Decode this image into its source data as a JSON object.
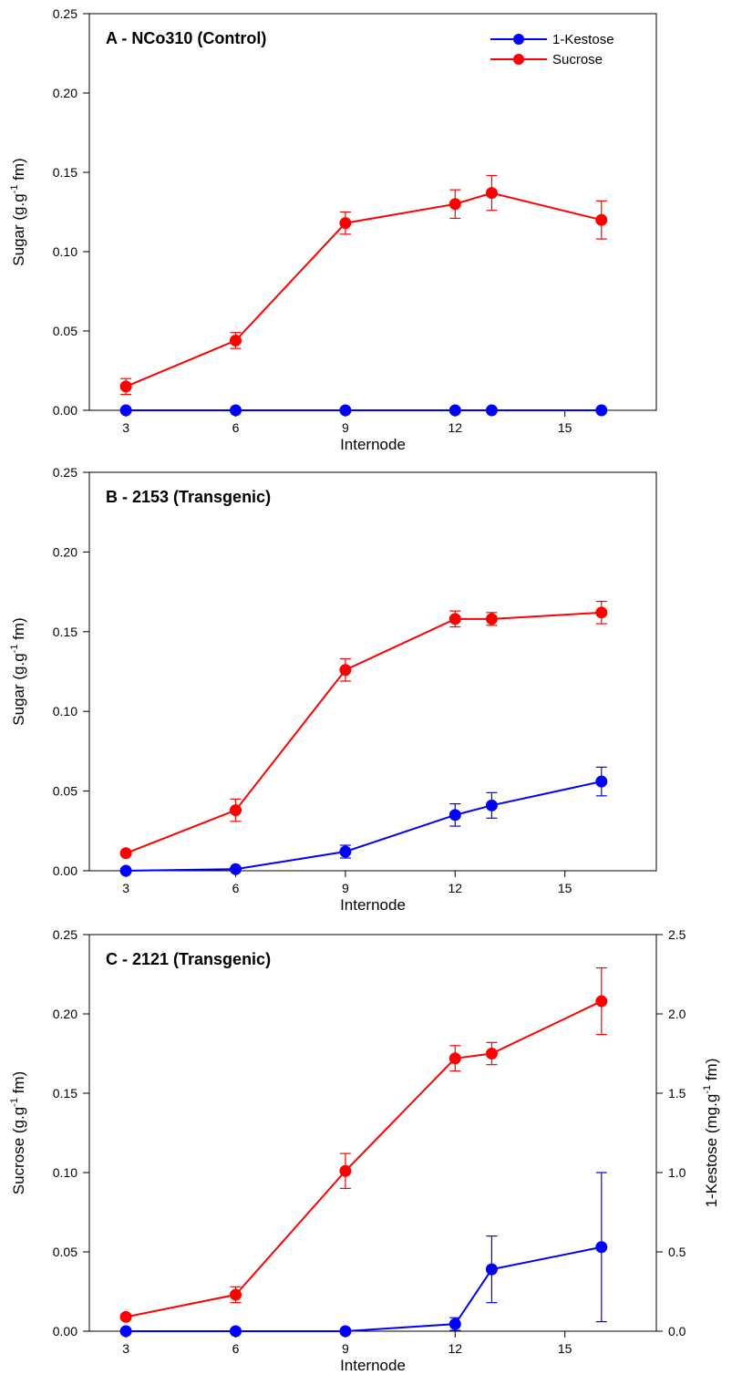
{
  "chart_data": [
    {
      "type": "line",
      "title": "A - NCo310 (Control)",
      "xlabel": "Internode",
      "ylabel": "Sugar (g.g",
      "ylabel_sup": "-1",
      "ylabel_tail": " fm)",
      "xlim": [
        2,
        17.5
      ],
      "ylim": [
        0,
        0.25
      ],
      "xticks": [
        3,
        6,
        9,
        12,
        15
      ],
      "yticks": [
        "0.00",
        "0.05",
        "0.10",
        "0.15",
        "0.20",
        "0.25"
      ],
      "legend": {
        "position": "top-right",
        "entries": [
          "1-Kestose",
          "Sucrose"
        ]
      },
      "series": [
        {
          "name": "1-Kestose",
          "color": "#0000ff",
          "axis": "left",
          "x": [
            3,
            6,
            9,
            12,
            13,
            16
          ],
          "y": [
            0,
            0,
            0,
            0,
            0,
            0
          ],
          "err": [
            0,
            0,
            0,
            0,
            0,
            0
          ]
        },
        {
          "name": "Sucrose",
          "color": "#ff0000",
          "axis": "left",
          "x": [
            3,
            6,
            9,
            12,
            13,
            16
          ],
          "y": [
            0.015,
            0.044,
            0.118,
            0.13,
            0.137,
            0.12
          ],
          "err": [
            0.005,
            0.005,
            0.007,
            0.009,
            0.011,
            0.012
          ]
        }
      ]
    },
    {
      "type": "line",
      "title": "B - 2153 (Transgenic)",
      "xlabel": "Internode",
      "ylabel": "Sugar (g.g",
      "ylabel_sup": "-1",
      "ylabel_tail": " fm)",
      "xlim": [
        2,
        17.5
      ],
      "ylim": [
        0,
        0.25
      ],
      "xticks": [
        3,
        6,
        9,
        12,
        15
      ],
      "yticks": [
        "0.00",
        "0.05",
        "0.10",
        "0.15",
        "0.20",
        "0.25"
      ],
      "series": [
        {
          "name": "1-Kestose",
          "color": "#0000ff",
          "axis": "left",
          "x": [
            3,
            6,
            9,
            12,
            13,
            16
          ],
          "y": [
            0,
            0.001,
            0.012,
            0.035,
            0.041,
            0.056
          ],
          "err": [
            0,
            0,
            0.004,
            0.007,
            0.008,
            0.009
          ]
        },
        {
          "name": "Sucrose",
          "color": "#ff0000",
          "axis": "left",
          "x": [
            3,
            6,
            9,
            12,
            13,
            16
          ],
          "y": [
            0.011,
            0.038,
            0.126,
            0.158,
            0.158,
            0.162
          ],
          "err": [
            0,
            0.007,
            0.007,
            0.005,
            0.004,
            0.007
          ]
        }
      ]
    },
    {
      "type": "line",
      "title": "C - 2121 (Transgenic)",
      "xlabel": "Internode",
      "ylabel": "Sucrose (g.g",
      "ylabel_sup": "-1",
      "ylabel_tail": " fm)",
      "y2label": "1-Kestose (mg.g",
      "y2label_sup": "-1",
      "y2label_tail": " fm)",
      "xlim": [
        2,
        17.5
      ],
      "ylim": [
        0,
        0.25
      ],
      "y2lim": [
        0,
        2.5
      ],
      "xticks": [
        3,
        6,
        9,
        12,
        15
      ],
      "yticks": [
        "0.00",
        "0.05",
        "0.10",
        "0.15",
        "0.20",
        "0.25"
      ],
      "y2ticks": [
        "0.0",
        "0.5",
        "1.0",
        "1.5",
        "2.0",
        "2.5"
      ],
      "series": [
        {
          "name": "1-Kestose",
          "color": "#0000ff",
          "axis": "right",
          "x": [
            3,
            6,
            9,
            12,
            13,
            16
          ],
          "y": [
            0,
            0,
            0,
            0.045,
            0.39,
            0.53
          ],
          "err": [
            0,
            0,
            0,
            0.04,
            0.21,
            0.47
          ]
        },
        {
          "name": "Sucrose",
          "color": "#ff0000",
          "axis": "left",
          "x": [
            3,
            6,
            9,
            12,
            13,
            16
          ],
          "y": [
            0.009,
            0.023,
            0.101,
            0.172,
            0.175,
            0.208
          ],
          "err": [
            0,
            0.005,
            0.011,
            0.008,
            0.007,
            0.021
          ]
        }
      ]
    }
  ]
}
